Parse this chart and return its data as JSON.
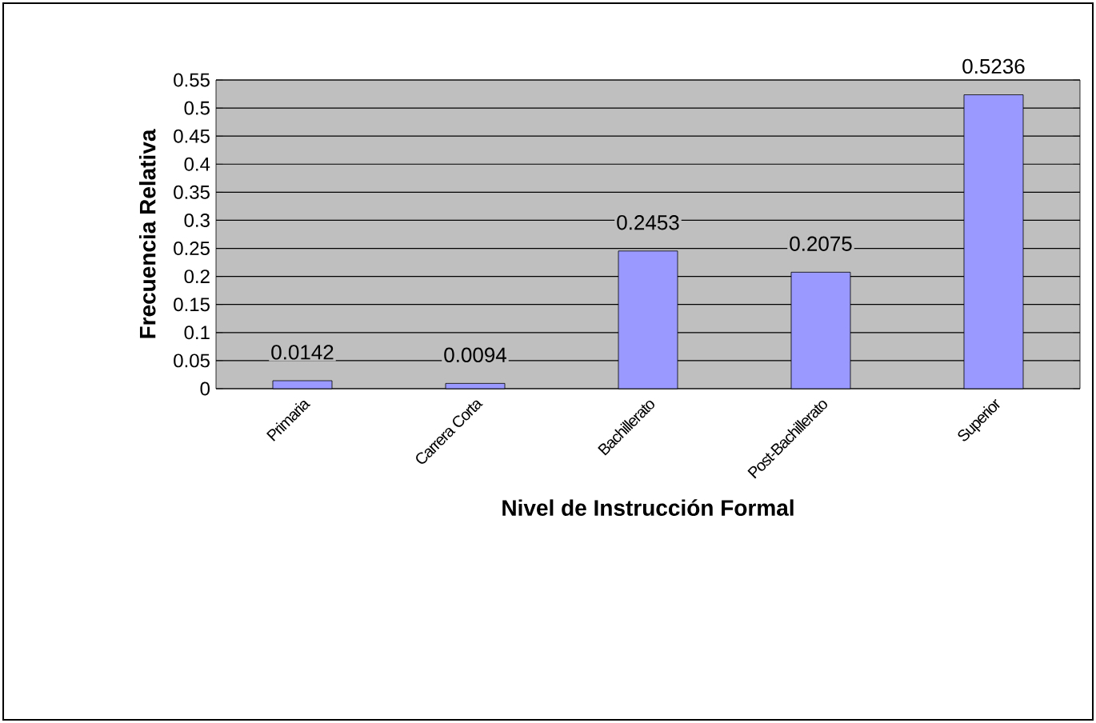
{
  "chart_data": {
    "type": "bar",
    "xlabel": "Nivel de Instrucción Formal",
    "ylabel": "Frecuencia Relativa",
    "categories": [
      "Primaria",
      "Carrera Corta",
      "Bachillerato",
      "Post-Bachillerato",
      "Superior"
    ],
    "values": [
      0.0142,
      0.0094,
      0.2453,
      0.2075,
      0.5236
    ],
    "color": "#9999ff",
    "ylim": [
      0,
      0.55
    ],
    "yticks": [
      0,
      0.05,
      0.1,
      0.15,
      0.2,
      0.25,
      0.3,
      0.35,
      0.4,
      0.45,
      0.5,
      0.55
    ],
    "grid": "y",
    "data_labels": true
  }
}
